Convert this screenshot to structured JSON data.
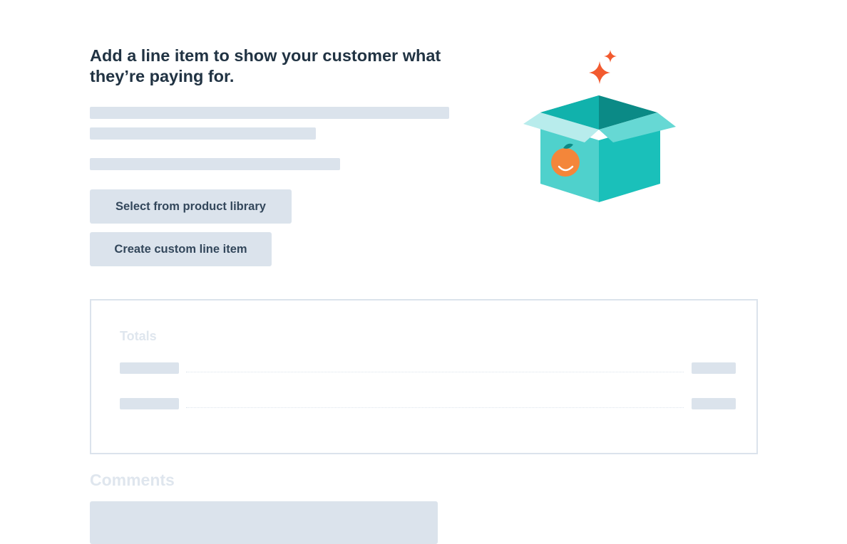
{
  "empty_state": {
    "heading": "Add a line item to show your customer what they’re paying for.",
    "buttons": {
      "product_library": "Select from product library",
      "custom_line_item": "Create custom line item"
    }
  },
  "totals": {
    "title": "Totals"
  },
  "comments": {
    "title": "Comments"
  },
  "colors": {
    "heading": "#213343",
    "skeleton": "#dbe3ec",
    "button_text": "#33475b",
    "teal": "#1ac0ba",
    "sparkle": "#f25a2f",
    "orange": "#f4863a"
  },
  "illustration": {
    "icon": "open-box-icon"
  }
}
